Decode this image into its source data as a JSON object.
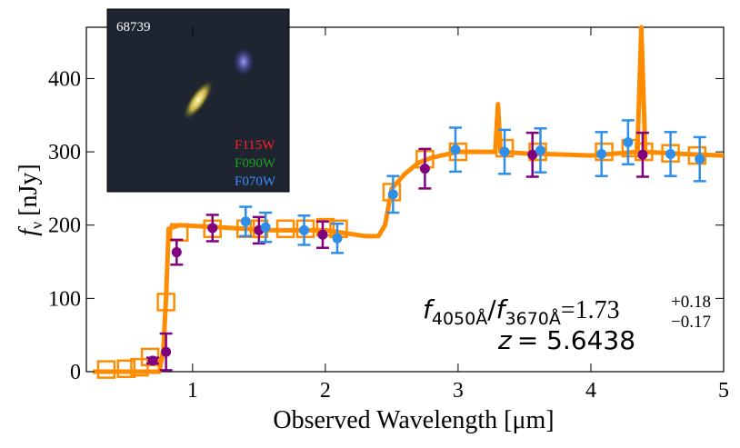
{
  "chart_data": {
    "type": "sed",
    "xlabel": "Observed Wavelength [μm]",
    "ylabel": {
      "symbol": "f",
      "sub": "ν",
      "unit": "[nJy]"
    },
    "xlim": [
      0.2,
      5
    ],
    "ylim": [
      0,
      470
    ],
    "xticks": [
      1,
      2,
      3,
      4,
      5
    ],
    "yticks": [
      0,
      100,
      200,
      300,
      400
    ],
    "inset": {
      "id": "68739",
      "filters": [
        {
          "name": "F115W",
          "color": "#ff2020"
        },
        {
          "name": "F090W",
          "color": "#20a020"
        },
        {
          "name": "F070W",
          "color": "#3a8cff"
        }
      ]
    },
    "annotation": {
      "symbol": "f",
      "numerator": "4050Å",
      "slash": "/",
      "denominator": "3670Å",
      "equals": "=",
      "value": "1.73",
      "upper": "+0.18",
      "lower": "−0.17"
    },
    "redshift": {
      "symbol": "z",
      "text": "= 5.6438"
    },
    "series": [
      {
        "kind": "spectrum",
        "color": "#ff8c00",
        "x": [
          0.25,
          0.75,
          0.78,
          0.8,
          0.82,
          0.9,
          1.2,
          1.6,
          2.0,
          2.3,
          2.4,
          2.45,
          2.5,
          2.6,
          2.7,
          2.8,
          3.0,
          3.28,
          3.3,
          3.32,
          3.5,
          4.0,
          4.35,
          4.38,
          4.41,
          4.7,
          5.0
        ],
        "values": [
          0,
          0,
          30,
          100,
          195,
          200,
          197,
          193,
          193,
          185,
          185,
          200,
          250,
          270,
          285,
          292,
          300,
          300,
          365,
          300,
          298,
          295,
          300,
          470,
          300,
          297,
          295
        ]
      },
      {
        "kind": "model",
        "color": "#ff8c00",
        "x": [
          0.35,
          0.5,
          0.6,
          0.68,
          0.8,
          0.9,
          1.15,
          1.4,
          1.5,
          1.7,
          1.85,
          2.0,
          2.1,
          2.5,
          2.75,
          3.0,
          3.35,
          3.6,
          4.1,
          4.3,
          4.4,
          4.6,
          4.8
        ],
        "values": [
          3,
          4,
          6,
          20,
          95,
          190,
          195,
          195,
          195,
          195,
          195,
          197,
          195,
          245,
          290,
          300,
          305,
          300,
          300,
          305,
          300,
          298,
          295
        ]
      },
      {
        "kind": "points",
        "color": "#800080",
        "x": [
          0.7,
          0.8,
          0.88,
          1.15,
          1.5,
          1.98,
          2.75,
          3.56,
          4.39
        ],
        "values": [
          15,
          27,
          163,
          196,
          193,
          187,
          277,
          296,
          296
        ],
        "errors": [
          4,
          25,
          17,
          18,
          18,
          18,
          27,
          30,
          30
        ]
      },
      {
        "kind": "points",
        "color": "#2f8fe8",
        "x": [
          1.4,
          1.55,
          1.84,
          2.09,
          2.51,
          2.98,
          3.35,
          3.62,
          4.08,
          4.28,
          4.6,
          4.82
        ],
        "values": [
          205,
          197,
          193,
          182,
          242,
          303,
          300,
          302,
          297,
          313,
          297,
          290
        ],
        "errors": [
          20,
          20,
          20,
          20,
          25,
          30,
          30,
          30,
          30,
          30,
          30,
          30
        ]
      }
    ]
  }
}
